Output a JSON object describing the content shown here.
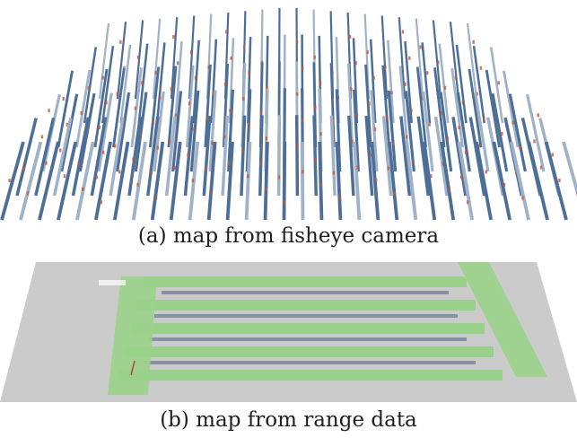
{
  "figure": {
    "caption_a": "(a) map from fisheye camera",
    "caption_b": "(b) map from range data"
  },
  "colors": {
    "pole_blue": "#4d6f97",
    "pole_light": "#9fb2c7",
    "pole_red": "#c2563a",
    "floor_gray": "#cbcbcb",
    "lane_green": "#9ad18a",
    "row_dark": "#6f7f96",
    "background": "#ffffff"
  }
}
